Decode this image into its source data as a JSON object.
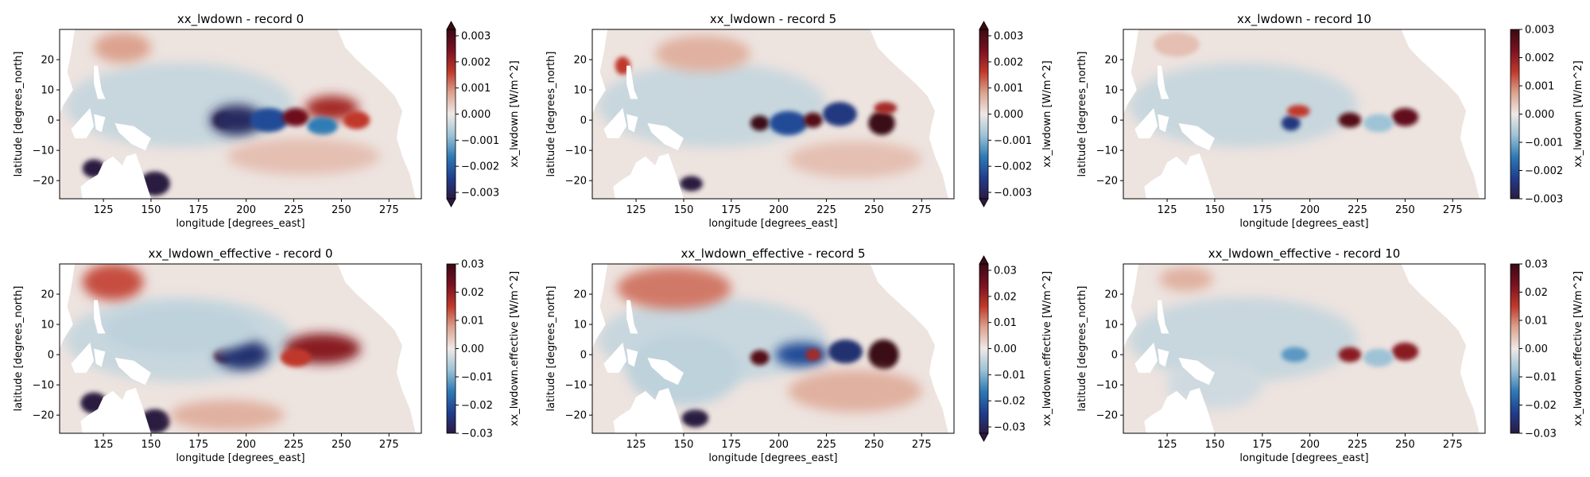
{
  "colors": {
    "cmap_stops": [
      "#2b1a41",
      "#1f3f8f",
      "#2f7bb6",
      "#9ec3d6",
      "#efe9e6",
      "#dca38f",
      "#c0392b",
      "#7a1222",
      "#3a0a12"
    ],
    "land": "#ffffff",
    "background": "#ffffff"
  },
  "chart_data": [
    {
      "type": "heatmap",
      "title": "xx_lwdown - record 0",
      "xlabel": "longitude [degrees_east]",
      "ylabel": "latitude [degrees_north]",
      "xticks": [
        "125",
        "150",
        "175",
        "200",
        "225",
        "250",
        "275"
      ],
      "yticks": [
        "20",
        "10",
        "0",
        "−10",
        "−20"
      ],
      "xlim": [
        102,
        292
      ],
      "ylim": [
        -26,
        30
      ],
      "colorbar": {
        "label": "xx_lwdown [W/m^2]",
        "ticks": [
          "0.003",
          "0.002",
          "0.001",
          "0.000",
          "−0.001",
          "−0.002",
          "−0.003"
        ],
        "range": [
          -0.003,
          0.003
        ],
        "extend": "both"
      },
      "features": [
        {
          "lon": 188,
          "lat": 0,
          "value": 1.0,
          "rx": 5,
          "ry": 2.5
        },
        {
          "lon": 195,
          "lat": 0,
          "value": -0.9,
          "rx": 14,
          "ry": 5
        },
        {
          "lon": 212,
          "lat": 0,
          "value": -0.7,
          "rx": 10,
          "ry": 4
        },
        {
          "lon": 226,
          "lat": 1,
          "value": 0.8,
          "rx": 7,
          "ry": 3
        },
        {
          "lon": 245,
          "lat": 4,
          "value": 0.6,
          "rx": 14,
          "ry": 4
        },
        {
          "lon": 240,
          "lat": -2,
          "value": -0.5,
          "rx": 8,
          "ry": 3
        },
        {
          "lon": 258,
          "lat": 0,
          "value": 0.5,
          "rx": 7,
          "ry": 3
        },
        {
          "lon": 120,
          "lat": -16,
          "value": -1.0,
          "rx": 6,
          "ry": 3
        },
        {
          "lon": 152,
          "lat": -21,
          "value": -1.0,
          "rx": 8,
          "ry": 4
        },
        {
          "lon": 135,
          "lat": 24,
          "value": 0.25,
          "rx": 15,
          "ry": 5
        },
        {
          "lon": 230,
          "lat": -12,
          "value": 0.15,
          "rx": 40,
          "ry": 6
        }
      ]
    },
    {
      "type": "heatmap",
      "title": "xx_lwdown - record 5",
      "xlabel": "longitude [degrees_east]",
      "ylabel": "latitude [degrees_north]",
      "xticks": [
        "125",
        "150",
        "175",
        "200",
        "225",
        "250",
        "275"
      ],
      "yticks": [
        "20",
        "10",
        "0",
        "−10",
        "−20"
      ],
      "xlim": [
        102,
        292
      ],
      "ylim": [
        -26,
        30
      ],
      "colorbar": {
        "label": "xx_lwdown [W/m^2]",
        "ticks": [
          "0.003",
          "0.002",
          "0.001",
          "0.000",
          "−0.001",
          "−0.002",
          "−0.003"
        ],
        "range": [
          -0.003,
          0.003
        ],
        "extend": "both"
      },
      "features": [
        {
          "lon": 190,
          "lat": -1,
          "value": 1.0,
          "rx": 5,
          "ry": 2.5
        },
        {
          "lon": 205,
          "lat": -1,
          "value": -0.7,
          "rx": 10,
          "ry": 4
        },
        {
          "lon": 218,
          "lat": 0,
          "value": 0.9,
          "rx": 5,
          "ry": 2.5
        },
        {
          "lon": 232,
          "lat": 2,
          "value": -0.8,
          "rx": 9,
          "ry": 4
        },
        {
          "lon": 254,
          "lat": -1,
          "value": 1.0,
          "rx": 7,
          "ry": 4
        },
        {
          "lon": 256,
          "lat": 4,
          "value": 0.6,
          "rx": 6,
          "ry": 2
        },
        {
          "lon": 154,
          "lat": -21,
          "value": -1.0,
          "rx": 6,
          "ry": 2.5
        },
        {
          "lon": 118,
          "lat": 18,
          "value": 0.5,
          "rx": 4,
          "ry": 3
        },
        {
          "lon": 160,
          "lat": 22,
          "value": 0.2,
          "rx": 25,
          "ry": 6
        },
        {
          "lon": 240,
          "lat": -13,
          "value": 0.15,
          "rx": 35,
          "ry": 6
        }
      ]
    },
    {
      "type": "heatmap",
      "title": "xx_lwdown - record 10",
      "xlabel": "longitude [degrees_east]",
      "ylabel": "latitude [degrees_north]",
      "xticks": [
        "125",
        "150",
        "175",
        "200",
        "225",
        "250",
        "275"
      ],
      "yticks": [
        "20",
        "10",
        "0",
        "−10",
        "−20"
      ],
      "xlim": [
        102,
        292
      ],
      "ylim": [
        -26,
        30
      ],
      "colorbar": {
        "label": "xx_lwdown [W/m^2]",
        "ticks": [
          "0.003",
          "0.002",
          "0.001",
          "0.000",
          "−0.001",
          "−0.002",
          "−0.003"
        ],
        "range": [
          -0.003,
          0.003
        ],
        "extend": "neither"
      },
      "features": [
        {
          "lon": 190,
          "lat": -1,
          "value": -0.8,
          "rx": 5,
          "ry": 2.5
        },
        {
          "lon": 194,
          "lat": 3,
          "value": 0.5,
          "rx": 6,
          "ry": 2
        },
        {
          "lon": 221,
          "lat": 0,
          "value": 0.9,
          "rx": 6,
          "ry": 2.5
        },
        {
          "lon": 250,
          "lat": 1,
          "value": 0.85,
          "rx": 7,
          "ry": 3
        },
        {
          "lon": 236,
          "lat": -1,
          "value": -0.25,
          "rx": 8,
          "ry": 3
        },
        {
          "lon": 130,
          "lat": 25,
          "value": 0.15,
          "rx": 12,
          "ry": 4
        }
      ]
    },
    {
      "type": "heatmap",
      "title": "xx_lwdown_effective - record 0",
      "xlabel": "longitude [degrees_east]",
      "ylabel": "latitude [degrees_north]",
      "xticks": [
        "125",
        "150",
        "175",
        "200",
        "225",
        "250",
        "275"
      ],
      "yticks": [
        "20",
        "10",
        "0",
        "−10",
        "−20"
      ],
      "xlim": [
        102,
        292
      ],
      "ylim": [
        -26,
        30
      ],
      "colorbar": {
        "label": "xx_lwdown.effective [W/m^2]",
        "ticks": [
          "0.03",
          "0.02",
          "0.01",
          "0.00",
          "−0.01",
          "−0.02",
          "−0.03"
        ],
        "range": [
          -0.03,
          0.03
        ],
        "extend": "neither"
      },
      "features": [
        {
          "lon": 188,
          "lat": 0,
          "value": 0.9,
          "rx": 5,
          "ry": 2.5
        },
        {
          "lon": 198,
          "lat": 0,
          "value": -0.85,
          "rx": 14,
          "ry": 5
        },
        {
          "lon": 240,
          "lat": 2,
          "value": 0.7,
          "rx": 20,
          "ry": 5
        },
        {
          "lon": 226,
          "lat": -1,
          "value": 0.5,
          "rx": 8,
          "ry": 3
        },
        {
          "lon": 120,
          "lat": -16,
          "value": -1.0,
          "rx": 7,
          "ry": 3.5
        },
        {
          "lon": 152,
          "lat": -22,
          "value": -1.0,
          "rx": 8,
          "ry": 4
        },
        {
          "lon": 130,
          "lat": 24,
          "value": 0.45,
          "rx": 16,
          "ry": 6
        },
        {
          "lon": 190,
          "lat": -20,
          "value": 0.2,
          "rx": 30,
          "ry": 5
        },
        {
          "lon": 165,
          "lat": 8,
          "value": -0.15,
          "rx": 40,
          "ry": 8
        }
      ]
    },
    {
      "type": "heatmap",
      "title": "xx_lwdown_effective - record 5",
      "xlabel": "longitude [degrees_east]",
      "ylabel": "latitude [degrees_north]",
      "xticks": [
        "125",
        "150",
        "175",
        "200",
        "225",
        "250",
        "275"
      ],
      "yticks": [
        "20",
        "10",
        "0",
        "−10",
        "−20"
      ],
      "xlim": [
        102,
        292
      ],
      "ylim": [
        -26,
        30
      ],
      "colorbar": {
        "label": "xx_lwdown.effective [W/m^2]",
        "ticks": [
          "0.03",
          "0.02",
          "0.01",
          "0.00",
          "−0.01",
          "−0.02",
          "−0.03"
        ],
        "range": [
          -0.03,
          0.03
        ],
        "extend": "both"
      },
      "features": [
        {
          "lon": 190,
          "lat": -1,
          "value": 0.9,
          "rx": 5,
          "ry": 2.5
        },
        {
          "lon": 212,
          "lat": 0,
          "value": -0.7,
          "rx": 14,
          "ry": 4
        },
        {
          "lon": 218,
          "lat": 0,
          "value": 0.6,
          "rx": 4,
          "ry": 2
        },
        {
          "lon": 235,
          "lat": 1,
          "value": -0.85,
          "rx": 9,
          "ry": 4
        },
        {
          "lon": 255,
          "lat": 0,
          "value": 1.0,
          "rx": 8,
          "ry": 5
        },
        {
          "lon": 156,
          "lat": -21,
          "value": -1.0,
          "rx": 7,
          "ry": 3
        },
        {
          "lon": 145,
          "lat": 22,
          "value": 0.35,
          "rx": 30,
          "ry": 7
        },
        {
          "lon": 240,
          "lat": -12,
          "value": 0.2,
          "rx": 35,
          "ry": 7
        },
        {
          "lon": 150,
          "lat": -5,
          "value": -0.15,
          "rx": 30,
          "ry": 12
        }
      ]
    },
    {
      "type": "heatmap",
      "title": "xx_lwdown_effective - record 10",
      "xlabel": "longitude [degrees_east]",
      "ylabel": "latitude [degrees_north]",
      "xticks": [
        "125",
        "150",
        "175",
        "200",
        "225",
        "250",
        "275"
      ],
      "yticks": [
        "20",
        "10",
        "0",
        "−10",
        "−20"
      ],
      "xlim": [
        102,
        292
      ],
      "ylim": [
        -26,
        30
      ],
      "colorbar": {
        "label": "xx_lwdown.effective [W/m^2]",
        "ticks": [
          "0.03",
          "0.02",
          "0.01",
          "0.00",
          "−0.01",
          "−0.02",
          "−0.03"
        ],
        "range": [
          -0.03,
          0.03
        ],
        "extend": "neither"
      },
      "features": [
        {
          "lon": 192,
          "lat": 0,
          "value": -0.4,
          "rx": 7,
          "ry": 2.5
        },
        {
          "lon": 221,
          "lat": 0,
          "value": 0.7,
          "rx": 6,
          "ry": 2.5
        },
        {
          "lon": 250,
          "lat": 1,
          "value": 0.7,
          "rx": 7,
          "ry": 3
        },
        {
          "lon": 236,
          "lat": -1,
          "value": -0.25,
          "rx": 8,
          "ry": 3
        },
        {
          "lon": 135,
          "lat": 25,
          "value": 0.2,
          "rx": 14,
          "ry": 4
        },
        {
          "lon": 150,
          "lat": -10,
          "value": -0.1,
          "rx": 25,
          "ry": 8
        }
      ]
    }
  ]
}
